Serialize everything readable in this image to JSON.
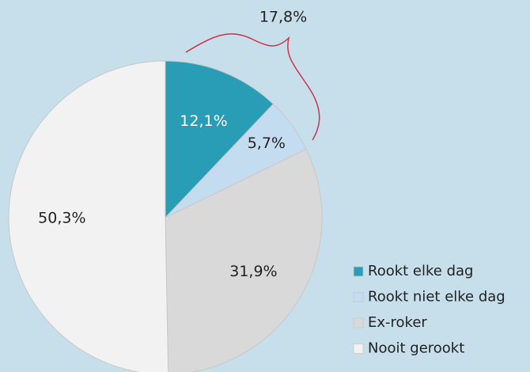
{
  "chart_data": {
    "type": "pie",
    "categories": [
      "Rookt elke dag",
      "Rookt niet elke dag",
      "Ex-roker",
      "Nooit gerookt"
    ],
    "values": [
      12.1,
      5.7,
      31.9,
      50.3
    ],
    "value_labels": [
      "12,1%",
      "5,7%",
      "31,9%",
      "50,3%"
    ],
    "colors": [
      "#2a9db6",
      "#c4dcef",
      "#d9d9d9",
      "#f2f2f2"
    ],
    "label_colors": [
      "#ffffff",
      "#222222",
      "#222222",
      "#222222"
    ],
    "annotations": [
      {
        "text": "17,8%"
      }
    ],
    "legend": "right"
  }
}
